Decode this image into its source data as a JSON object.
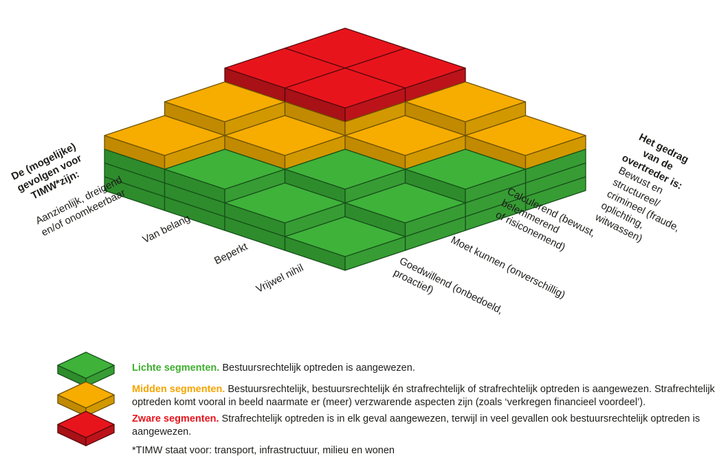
{
  "matrix": {
    "left_axis": {
      "title": "De (mogelijke)\ngevolgen voor\nTIMW*zijn:",
      "labels": [
        "Aanzienlijk, dreigend\nen/of onomkeerbaar",
        "Van belang",
        "Beperkt",
        "Vrijwel nihil"
      ]
    },
    "right_axis": {
      "title": "Het gedrag van de\novertreder is:",
      "labels": [
        "Goedwillend (onbedoeld,\nproactief)",
        "Moet kunnen (onverschillig)",
        "Calculerend (bewust, belemmerend\nof risiconemend)",
        "Bewust en structureel/\ncrimineel (fraude, oplichting,\nwitwassen)"
      ]
    },
    "grid": {
      "row_labels": [
        "Aanzienlijk, dreigend en/of onomkeerbaar",
        "Van belang",
        "Beperkt",
        "Vrijwel nihil"
      ],
      "col_labels": [
        "Goedwillend (onbedoeld, proactief)",
        "Moet kunnen (onverschillig)",
        "Calculerend (bewust, belemmerend of risiconemend)",
        "Bewust en structureel/crimineel (fraude, oplichting, witwassen)"
      ],
      "cells": [
        [
          "orange",
          "orange",
          "red",
          "red"
        ],
        [
          "green",
          "orange",
          "red",
          "red"
        ],
        [
          "green",
          "green",
          "orange",
          "orange"
        ],
        [
          "green",
          "green",
          "green",
          "orange"
        ]
      ]
    }
  },
  "colors": {
    "green": {
      "top": "#3FB23A",
      "side_l": "#2E8C2C",
      "side_r": "#379C34",
      "stroke": "#17501A",
      "text": "#3FAE2F"
    },
    "orange": {
      "top": "#F7AC00",
      "side_l": "#C18A00",
      "side_r": "#D29800",
      "stroke": "#6E5200",
      "text": "#F6A500"
    },
    "red": {
      "top": "#E8141C",
      "side_l": "#A81116",
      "side_r": "#BC131A",
      "stroke": "#57090C",
      "text": "#E8141C"
    }
  },
  "legend": [
    {
      "key": "green",
      "title": "Lichte segmenten.",
      "text": "Bestuursrechtelijk optreden is aangewezen."
    },
    {
      "key": "orange",
      "title": "Midden segmenten.",
      "text": "Bestuursrechtelijk, bestuursrechtelijk én strafrechtelijk of strafrechtelijk optreden is aangewezen. Strafrechtelijk optreden komt vooral in beeld naarmate er (meer) verzwarende aspecten zijn (zoals ‘verkregen financieel voordeel’)."
    },
    {
      "key": "red",
      "title": "Zware segmenten.",
      "text": "Strafrechtelijk optreden is in elk geval aangewezen, terwijl in veel gevallen ook bestuursrechtelijk optreden is aangewezen."
    }
  ],
  "footnote": "*TIMW staat voor: transport, infrastructuur, milieu en wonen"
}
